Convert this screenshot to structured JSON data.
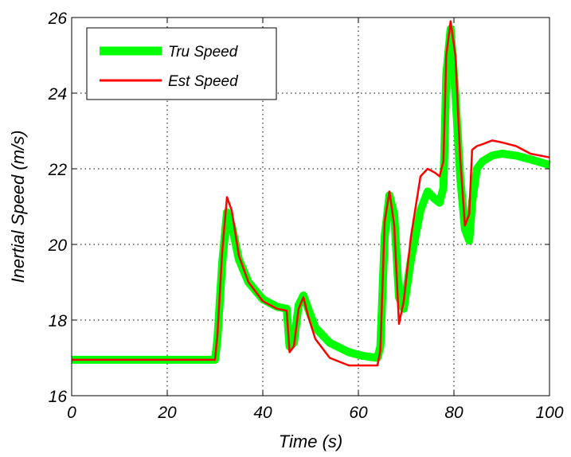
{
  "chart_data": {
    "type": "line",
    "title": "",
    "xlabel": "Time (s)",
    "ylabel": "Inertial Speed (m/s)",
    "xlim": [
      0,
      100
    ],
    "ylim": [
      16,
      26
    ],
    "xticks": [
      0,
      20,
      40,
      60,
      80,
      100
    ],
    "yticks": [
      16,
      18,
      20,
      22,
      24,
      26
    ],
    "xtick_labels": [
      "0",
      "20",
      "40",
      "60",
      "80",
      "100"
    ],
    "ytick_labels": [
      "16",
      "18",
      "20",
      "22",
      "24",
      "26"
    ],
    "grid": true,
    "legend_position": "top-left",
    "series": [
      {
        "name": "Tru Speed",
        "color": "#00ff00",
        "x": [
          0,
          30,
          30.5,
          31.5,
          32.5,
          33.5,
          35,
          37,
          40,
          43,
          45,
          45.6,
          46.5,
          47.5,
          48.5,
          49.5,
          51,
          54,
          58,
          61,
          64,
          64.6,
          65.5,
          66.5,
          67.5,
          68.5,
          69.5,
          71,
          73,
          74.5,
          76,
          77,
          77.8,
          78.4,
          79.3,
          80.3,
          81.3,
          82.3,
          83.2,
          83.8,
          84.8,
          86,
          88,
          90,
          93,
          96,
          100
        ],
        "values": [
          16.95,
          16.95,
          17.5,
          19.5,
          20.85,
          20.5,
          19.6,
          19.0,
          18.55,
          18.35,
          18.3,
          17.3,
          17.4,
          18.4,
          18.65,
          18.3,
          17.8,
          17.4,
          17.15,
          17.05,
          17.0,
          17.3,
          20.2,
          21.3,
          20.8,
          18.6,
          18.3,
          19.6,
          20.9,
          21.4,
          21.2,
          21.1,
          21.5,
          24.5,
          25.7,
          24.0,
          21.8,
          20.4,
          20.1,
          21.1,
          22.0,
          22.2,
          22.35,
          22.4,
          22.35,
          22.25,
          22.1
        ]
      },
      {
        "name": "Est Speed",
        "color": "#ff0000",
        "x": [
          0,
          30,
          30.5,
          31.5,
          32.5,
          33.5,
          35,
          37,
          40,
          43,
          45,
          45.6,
          46.5,
          47.5,
          48.5,
          49.5,
          51,
          54,
          58,
          61,
          64,
          64.6,
          65.5,
          66.5,
          67.5,
          68.5,
          69.5,
          71,
          73,
          74.5,
          76,
          77,
          77.8,
          78.4,
          79.3,
          80.3,
          81.3,
          82.3,
          83.2,
          83.8,
          84.8,
          86,
          88,
          90,
          93,
          96,
          100
        ],
        "values": [
          16.95,
          16.95,
          17.6,
          19.8,
          21.25,
          20.9,
          19.7,
          19.0,
          18.5,
          18.3,
          18.25,
          17.15,
          17.3,
          18.3,
          18.6,
          18.1,
          17.5,
          17.0,
          16.8,
          16.8,
          16.8,
          17.2,
          20.6,
          21.4,
          20.5,
          17.9,
          18.5,
          20.2,
          21.8,
          22.0,
          21.9,
          21.8,
          22.2,
          25.0,
          25.9,
          25.0,
          22.3,
          20.5,
          20.8,
          22.5,
          22.6,
          22.65,
          22.75,
          22.7,
          22.6,
          22.4,
          22.3
        ]
      }
    ]
  }
}
